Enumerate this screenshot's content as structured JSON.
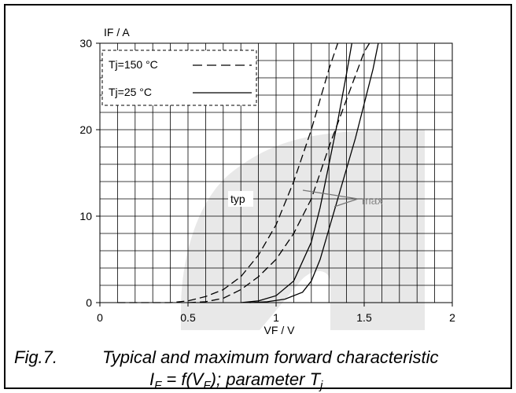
{
  "chart_data": {
    "type": "line",
    "y_label": "IF / A",
    "x_label": "VF / V",
    "xlim": [
      0,
      2
    ],
    "ylim": [
      0,
      30
    ],
    "xticks": [
      0,
      0.5,
      1,
      1.5,
      2
    ],
    "yticks": [
      0,
      10,
      20,
      30
    ],
    "grid": true,
    "legend": "upper left",
    "series": [
      {
        "name": "Tj=150 °C",
        "style": "dashed",
        "color": "#000000",
        "x": [
          0.1,
          0.4,
          0.5,
          0.6,
          0.7,
          0.8,
          0.9,
          1.0,
          1.1,
          1.2,
          1.3,
          1.35
        ],
        "values": [
          0,
          0,
          0.2,
          0.7,
          1.5,
          3,
          5.5,
          9,
          14,
          20,
          27,
          30
        ]
      },
      {
        "name": "Tj=150 °C",
        "style": "dashed",
        "color": "#000000",
        "x": [
          0.5,
          0.6,
          0.7,
          0.8,
          0.9,
          1.0,
          1.1,
          1.2,
          1.3,
          1.4,
          1.5,
          1.53
        ],
        "values": [
          0,
          0.1,
          0.5,
          1.5,
          3,
          5,
          8,
          12,
          18,
          23.5,
          29,
          30
        ]
      },
      {
        "name": "Tj=25 °C",
        "style": "solid",
        "color": "#000000",
        "x": [
          0.8,
          0.9,
          1.0,
          1.1,
          1.2,
          1.25,
          1.3,
          1.35,
          1.4,
          1.43
        ],
        "values": [
          0,
          0.2,
          0.8,
          2.5,
          7,
          11,
          16,
          21,
          26.5,
          30
        ]
      },
      {
        "name": "Tj=25 °C",
        "style": "solid",
        "color": "#000000",
        "x": [
          0.85,
          0.95,
          1.05,
          1.15,
          1.2,
          1.25,
          1.3,
          1.35,
          1.4,
          1.45,
          1.5,
          1.55,
          1.58
        ],
        "values": [
          0,
          0.1,
          0.4,
          1.2,
          2.5,
          5,
          8.5,
          12,
          15.5,
          19,
          23,
          27,
          30
        ]
      }
    ],
    "annotations": [
      "typ",
      "max"
    ],
    "caption": {
      "number": "Fig.7.",
      "title": "Typical and maximum forward characteristic",
      "formula": [
        "I",
        "F",
        " = f(V",
        "F",
        "); parameter T",
        "j"
      ]
    }
  }
}
